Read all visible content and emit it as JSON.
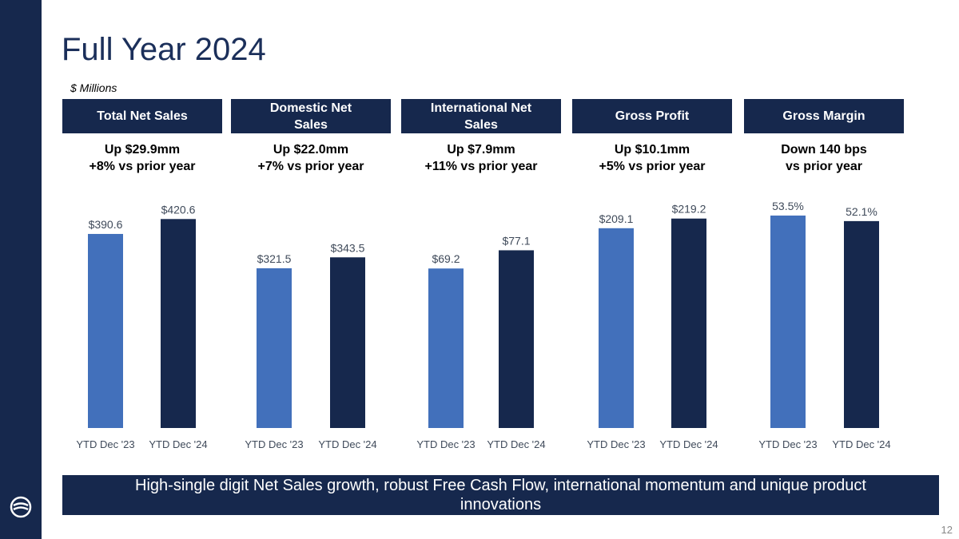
{
  "slide": {
    "title": "Full Year 2024",
    "units": "$ Millions",
    "page_number": "12",
    "footer": "High-single digit Net Sales growth, robust Free Cash Flow, international momentum and unique product innovations"
  },
  "colors": {
    "navy": "#16284d",
    "bar_prior": "#4270bb",
    "bar_current": "#16284d"
  },
  "panels": [
    {
      "header": "Total Net Sales",
      "line1": "Up $29.9mm",
      "line2": "+8% vs prior year"
    },
    {
      "header": "Domestic Net Sales",
      "line1": "Up $22.0mm",
      "line2": "+7% vs prior year"
    },
    {
      "header": "International Net Sales",
      "line1": "Up $7.9mm",
      "line2": "+11% vs prior year"
    },
    {
      "header": "Gross Profit",
      "line1": "Up $10.1mm",
      "line2": "+5% vs prior year"
    },
    {
      "header": "Gross Margin",
      "line1": "Down 140 bps",
      "line2": "vs prior year"
    }
  ],
  "chart_data": [
    {
      "type": "bar",
      "title": "Total Net Sales",
      "categories": [
        "YTD Dec '23",
        "YTD Dec '24"
      ],
      "values": [
        390.6,
        420.6
      ],
      "labels": [
        "$390.6",
        "$420.6"
      ],
      "ylim": [
        0,
        450
      ]
    },
    {
      "type": "bar",
      "title": "Domestic Net Sales",
      "categories": [
        "YTD Dec '23",
        "YTD Dec '24"
      ],
      "values": [
        321.5,
        343.5
      ],
      "labels": [
        "$321.5",
        "$343.5"
      ],
      "ylim": [
        0,
        450
      ]
    },
    {
      "type": "bar",
      "title": "International Net Sales",
      "categories": [
        "YTD Dec '23",
        "YTD Dec '24"
      ],
      "values": [
        69.2,
        77.1
      ],
      "labels": [
        "$69.2",
        "$77.1"
      ],
      "ylim": [
        0,
        97
      ]
    },
    {
      "type": "bar",
      "title": "Gross Profit",
      "categories": [
        "YTD Dec '23",
        "YTD Dec '24"
      ],
      "values": [
        209.1,
        219.2
      ],
      "labels": [
        "$209.1",
        "$219.2"
      ],
      "ylim": [
        0,
        234
      ]
    },
    {
      "type": "bar",
      "title": "Gross Margin",
      "categories": [
        "YTD Dec '23",
        "YTD Dec '24"
      ],
      "values": [
        53.5,
        52.1
      ],
      "labels": [
        "53.5%",
        "52.1%"
      ],
      "ylim": [
        0,
        56.3
      ]
    }
  ]
}
